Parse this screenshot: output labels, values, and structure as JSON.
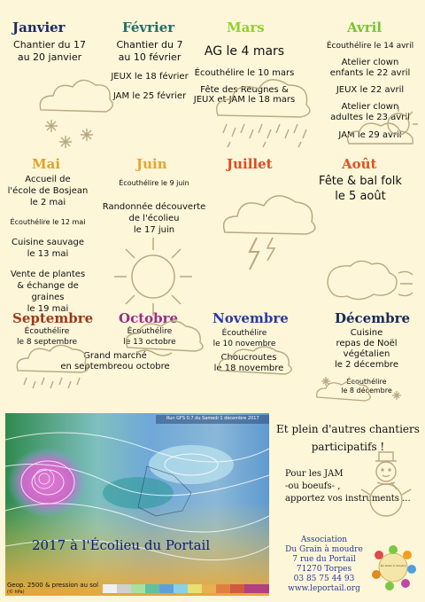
{
  "months": {
    "janvier": {
      "name": "Janvier",
      "color": "#1a2a6c",
      "events": [
        "Chantier du 17",
        "au 20 janvier"
      ]
    },
    "fevrier": {
      "name": "Février",
      "color": "#1f6f6a",
      "events": [
        "Chantier du 7",
        "au 10 février",
        "JEUX le 18 février",
        "JAM le 25 février"
      ]
    },
    "mars": {
      "name": "Mars",
      "color": "#8fd12f",
      "events": [
        "AG le 4 mars",
        "Écouthélire le 10 mars",
        "Fête des Reugnes &",
        "JEUX et JAM le 18 mars"
      ]
    },
    "avril": {
      "name": "Avril",
      "color": "#74c72f",
      "events": [
        "Écouthélire le 14 avril",
        "Atelier clown",
        "enfants le 22 avril",
        "JEUX le 22 avril",
        "Atelier clown",
        "adultes le 23 avril",
        "JAM le 29 avril"
      ]
    },
    "mai": {
      "name": "Mai",
      "color": "#e0a521",
      "events": [
        "Accueil de",
        "l'école de Bosjean",
        "le 2 mai",
        "Écouthélire le 12 mai",
        "Cuisine sauvage",
        "le 13 mai",
        "Vente de plantes",
        "& échange de graines",
        "le 19 mai"
      ]
    },
    "juin": {
      "name": "Juin",
      "color": "#e9a42a",
      "events": [
        "Écouthélire le 9 juin",
        "Randonnée découverte",
        "de l'écolieu",
        "le 17 juin"
      ]
    },
    "juillet": {
      "name": "Juillet",
      "color": "#e04a1e",
      "events": []
    },
    "aout": {
      "name": "Août",
      "color": "#e0521f",
      "events": [
        "Fête & bal folk",
        "le 5 août"
      ]
    },
    "septembre": {
      "name": "Septembre",
      "color": "#9a3a18",
      "events": [
        "Écouthélire",
        "le 8 septembre",
        "Grand marché",
        "en septembreou octobre"
      ]
    },
    "octobre": {
      "name": "Octobre",
      "color": "#9b2d86",
      "events": [
        "Écouthélire",
        "le 13 octobre"
      ]
    },
    "novembre": {
      "name": "Novembre",
      "color": "#2c3aa5",
      "events": [
        "Écouthélire",
        "le 10 novembre",
        "Choucroutes",
        "le 18 novembre"
      ]
    },
    "decembre": {
      "name": "Décembre",
      "color": "#17295e",
      "events": [
        "Cuisine",
        "repas de Noël",
        "végétalien",
        "le 2 décembre",
        "Écouthélire",
        "le 8 décembre"
      ]
    }
  },
  "extra": {
    "title": "Et plein d'autres chantiers",
    "title2": "participatifs !",
    "jam": [
      "Pour les JAM",
      "-ou boeufs- ,",
      "apportez vos instruments ..."
    ]
  },
  "map": {
    "caption": "2017 à l'Écolieu du Portail",
    "header": "Run GFS 0.7 du Samedi 1 décembre 2017",
    "legend": "Geop. 2500 & pression au sol",
    "legend_small": "(© hPa)"
  },
  "association": {
    "lines": [
      "Association",
      "Du Grain à moudre",
      "7 rue du Portail",
      "71270 Torpes",
      "03 85 75 44 93",
      "www.leportail.org"
    ],
    "color": "#2a3b9a",
    "logo_text": "Du Grain à moudre"
  }
}
